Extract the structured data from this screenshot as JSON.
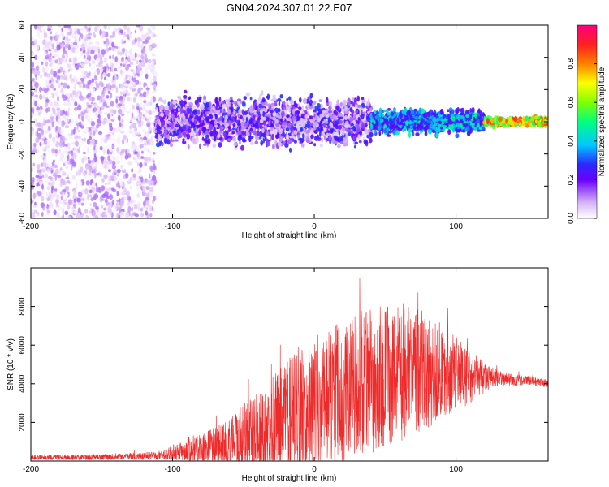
{
  "title": "GN04.2024.307.01.22.E07",
  "chart_data": [
    {
      "type": "heatmap",
      "title": "GN04.2024.307.01.22.E07",
      "xlabel": "Height of straight line (km)",
      "ylabel": "Frequency (Hz)",
      "xlim": [
        -200,
        165
      ],
      "ylim": [
        -60,
        60
      ],
      "xticks": [
        "-200",
        "-100",
        "0",
        "100"
      ],
      "yticks": [
        "-60",
        "-40",
        "-20",
        "0",
        "20",
        "40",
        "60"
      ],
      "colorbar": {
        "label": "Normalized spectral amplitude",
        "range": [
          0,
          1
        ],
        "ticks": [
          "0.0",
          "0.2",
          "0.4",
          "0.6",
          "0.8"
        ]
      },
      "regions": [
        {
          "x_range": [
            -200,
            -112
          ],
          "freq_range": [
            -60,
            60
          ],
          "amplitude": [
            0.01,
            0.15
          ],
          "description": "broadband scatter"
        },
        {
          "x_range": [
            -112,
            40
          ],
          "freq_center": 0,
          "freq_spread": 12,
          "amplitude": [
            0.05,
            0.3
          ]
        },
        {
          "x_range": [
            40,
            120
          ],
          "freq_center": 0,
          "freq_spread": 6,
          "amplitude": [
            0.2,
            0.5
          ]
        },
        {
          "x_range": [
            120,
            165
          ],
          "freq_center": 0,
          "freq_spread": 2,
          "amplitude": [
            0.5,
            0.9
          ]
        }
      ]
    },
    {
      "type": "line",
      "xlabel": "Height of straight line (km)",
      "ylabel": "SNR (10 * v/v)",
      "xlim": [
        -200,
        165
      ],
      "ylim": [
        0,
        10000
      ],
      "xticks": [
        "-200",
        "-100",
        "0",
        "100"
      ],
      "yticks": [
        "2000",
        "4000",
        "6000",
        "8000"
      ],
      "color": "#ee2a2a",
      "envelope_x": [
        -200,
        -150,
        -110,
        -100,
        -90,
        -75,
        -60,
        -50,
        -40,
        -30,
        -20,
        -10,
        0,
        10,
        20,
        30,
        40,
        50,
        60,
        70,
        80,
        90,
        100,
        110,
        120,
        130,
        140,
        150,
        165
      ],
      "envelope_mean": [
        180,
        200,
        280,
        450,
        600,
        750,
        900,
        1200,
        1500,
        1800,
        2200,
        2600,
        3000,
        3300,
        3600,
        3900,
        4200,
        4400,
        4600,
        4700,
        4700,
        4600,
        4500,
        4400,
        4300,
        4300,
        4200,
        4200,
        4000
      ],
      "envelope_spread": [
        120,
        150,
        200,
        400,
        600,
        900,
        1200,
        1800,
        2200,
        2600,
        3000,
        3300,
        3500,
        3600,
        3700,
        3800,
        3800,
        3700,
        3600,
        3400,
        3000,
        2500,
        2000,
        1400,
        800,
        400,
        300,
        250,
        200
      ]
    }
  ]
}
